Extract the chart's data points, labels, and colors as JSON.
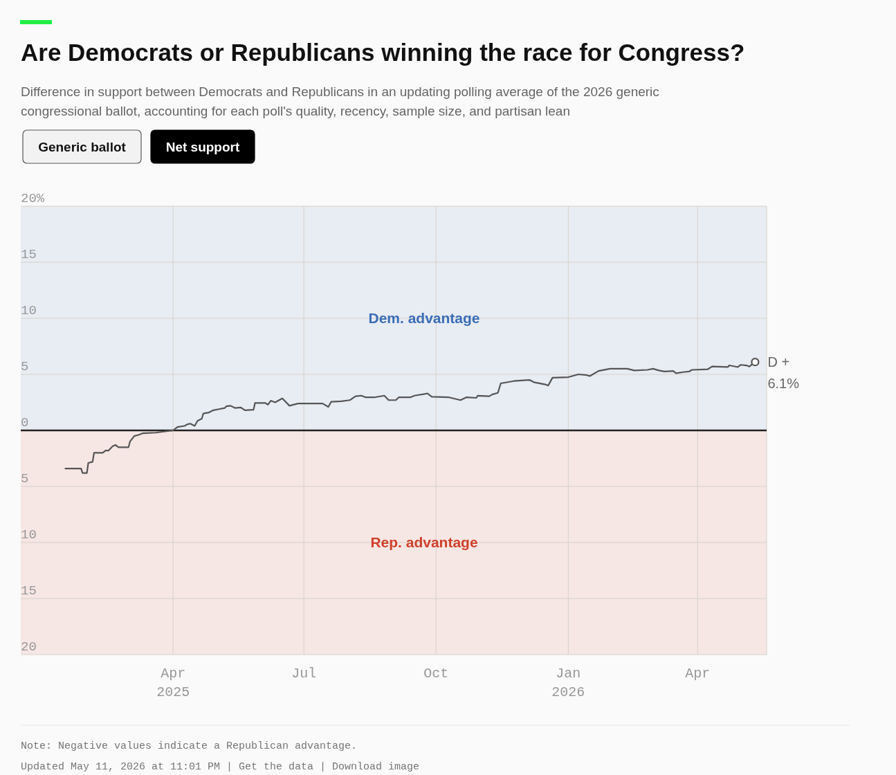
{
  "chart_data": {
    "type": "line",
    "title": "Are Democrats or Republicans winning the race for Congress?",
    "subtitle": "Difference in support between Democrats and Republicans in an updating polling average of the 2026 generic congressional ballot, accounting for each poll's quality, recency, sample size, and partisan lean",
    "x": [
      "2025-01-16",
      "2025-01-27",
      "2025-01-28",
      "2025-01-31",
      "2025-02-01",
      "2025-02-04",
      "2025-02-05",
      "2025-02-11",
      "2025-02-13",
      "2025-02-15",
      "2025-02-18",
      "2025-02-20",
      "2025-02-22",
      "2025-03-01",
      "2025-03-02",
      "2025-03-05",
      "2025-03-08",
      "2025-03-11",
      "2025-03-20",
      "2025-04-01",
      "2025-04-04",
      "2025-04-09",
      "2025-04-11",
      "2025-04-13",
      "2025-04-16",
      "2025-04-18",
      "2025-04-21",
      "2025-04-22",
      "2025-04-26",
      "2025-04-29",
      "2025-05-03",
      "2025-05-07",
      "2025-05-08",
      "2025-05-11",
      "2025-05-14",
      "2025-05-18",
      "2025-05-21",
      "2025-05-27",
      "2025-05-28",
      "2025-06-04",
      "2025-06-06",
      "2025-06-08",
      "2025-06-11",
      "2025-06-16",
      "2025-06-21",
      "2025-06-27",
      "2025-07-14",
      "2025-07-18",
      "2025-07-20",
      "2025-07-27",
      "2025-08-02",
      "2025-08-06",
      "2025-08-10",
      "2025-08-13",
      "2025-08-19",
      "2025-08-26",
      "2025-08-29",
      "2025-09-03",
      "2025-09-05",
      "2025-09-13",
      "2025-09-16",
      "2025-09-23",
      "2025-09-25",
      "2025-09-28",
      "2025-10-10",
      "2025-10-18",
      "2025-10-22",
      "2025-10-29",
      "2025-10-30",
      "2025-11-07",
      "2025-11-09",
      "2025-11-13",
      "2025-11-15",
      "2025-11-24",
      "2025-12-05",
      "2025-12-08",
      "2025-12-16",
      "2025-12-18",
      "2025-12-21",
      "2026-01-01",
      "2026-01-08",
      "2026-01-13",
      "2026-01-16",
      "2026-01-22",
      "2026-01-30",
      "2026-02-11",
      "2026-02-16",
      "2026-02-25",
      "2026-03-01",
      "2026-03-05",
      "2026-03-09",
      "2026-03-15",
      "2026-03-17",
      "2026-03-22",
      "2026-03-26",
      "2026-03-28",
      "2026-04-08",
      "2026-04-11",
      "2026-04-22",
      "2026-04-23",
      "2026-04-29",
      "2026-05-01",
      "2026-05-05",
      "2026-05-07",
      "2026-05-11"
    ],
    "series": [
      {
        "color": "#555555",
        "values": [
          -3.4,
          -3.4,
          -3.8,
          -3.8,
          -2.9,
          -2.8,
          -2.0,
          -2.0,
          -1.8,
          -1.8,
          -1.4,
          -1.3,
          -1.5,
          -1.5,
          -1.0,
          -0.5,
          -0.4,
          -0.25,
          -0.2,
          0.0,
          0.3,
          0.4,
          0.55,
          0.6,
          0.4,
          0.85,
          1.05,
          1.5,
          1.6,
          1.8,
          1.9,
          2.0,
          2.15,
          2.2,
          2.0,
          2.05,
          1.8,
          1.85,
          2.45,
          2.45,
          2.3,
          2.65,
          2.5,
          2.85,
          2.2,
          2.4,
          2.4,
          2.1,
          2.55,
          2.6,
          2.7,
          3.05,
          3.1,
          2.95,
          2.95,
          3.1,
          2.7,
          2.7,
          2.95,
          2.95,
          3.1,
          3.25,
          3.3,
          3.0,
          2.95,
          2.7,
          2.95,
          2.9,
          3.1,
          3.05,
          3.2,
          3.35,
          4.2,
          4.4,
          4.5,
          4.3,
          4.1,
          4.0,
          4.7,
          4.75,
          5.0,
          4.95,
          4.85,
          5.3,
          5.5,
          5.5,
          5.35,
          5.4,
          5.5,
          5.35,
          5.25,
          5.3,
          5.1,
          5.2,
          5.25,
          5.4,
          5.45,
          5.7,
          5.65,
          5.8,
          5.65,
          5.85,
          5.8,
          5.7,
          6.1
        ]
      }
    ],
    "xlim": [
      "2024-12-16",
      "2026-05-19"
    ],
    "xticks": [
      {
        "value": "2025-04-01",
        "label": "Apr 2025"
      },
      {
        "value": "2025-07-01",
        "label": "Jul"
      },
      {
        "value": "2025-10-01",
        "label": "Oct"
      },
      {
        "value": "2026-01-01",
        "label": "Jan 2026"
      },
      {
        "value": "2026-04-01",
        "label": "Apr"
      }
    ],
    "ylim": [
      -20,
      20
    ],
    "yticks": [
      {
        "value": -20,
        "label": "20"
      },
      {
        "value": -15,
        "label": "15"
      },
      {
        "value": -10,
        "label": "10"
      },
      {
        "value": -5,
        "label": "5"
      },
      0,
      5,
      10,
      15,
      {
        "value": 20,
        "label": "20%"
      }
    ],
    "grid": true,
    "line_style": "solid",
    "bands": [
      {
        "axis": "y",
        "from": 0,
        "to": 20,
        "label": "Dem. advantage",
        "color": "#e8ecf3"
      },
      {
        "axis": "y",
        "from": -20,
        "to": 0,
        "label": "Rep. advantage",
        "color": "#f6e6e4"
      }
    ],
    "ref_lines": [
      {
        "axis": "y",
        "value": 0,
        "color": "#222222"
      }
    ],
    "annotations": [
      "Generic ballot",
      "Net support",
      {
        "text": "D + 6.1%",
        "x": "2026-05-11",
        "y": 6.1
      },
      "Note: Negative values indicate a Republican advantage.",
      "Updated May 11, 2026 at 11:01 PM | Get the data | Download image"
    ]
  }
}
